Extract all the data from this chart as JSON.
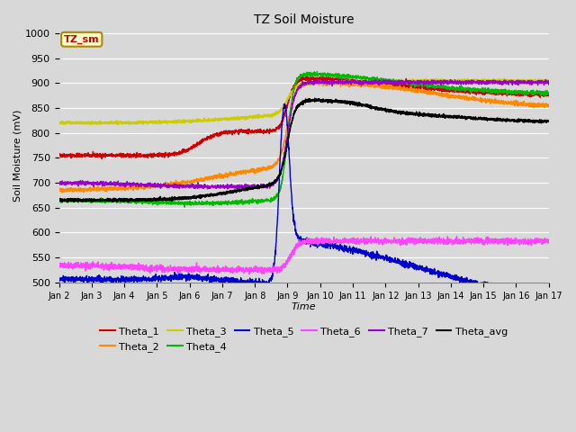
{
  "title": "TZ Soil Moisture",
  "xlabel": "Time",
  "ylabel": "Soil Moisture (mV)",
  "ylim": [
    500,
    1010
  ],
  "yticks": [
    500,
    550,
    600,
    650,
    700,
    750,
    800,
    850,
    900,
    950,
    1000
  ],
  "bg_color": "#d8d8d8",
  "plot_bg_color": "#d8d8d8",
  "series_colors": {
    "Theta_1": "#cc0000",
    "Theta_2": "#ff8800",
    "Theta_3": "#cccc00",
    "Theta_4": "#00bb00",
    "Theta_5": "#0000cc",
    "Theta_6": "#ff44ff",
    "Theta_7": "#9900cc",
    "Theta_avg": "#000000"
  },
  "legend_box_color": "#ffffcc",
  "legend_box_text": "TZ_sm",
  "legend_box_text_color": "#cc0000",
  "xtick_labels": [
    "Jan 2",
    "Jan 3",
    "Jan 4",
    "Jan 5",
    "Jan 6",
    "Jan 7",
    "Jan 8",
    "Jan 9",
    "Jan 10",
    "Jan 11",
    "Jan 12",
    "Jan 13",
    "Jan 14",
    "Jan 15",
    "Jan 16",
    "Jan 17"
  ]
}
